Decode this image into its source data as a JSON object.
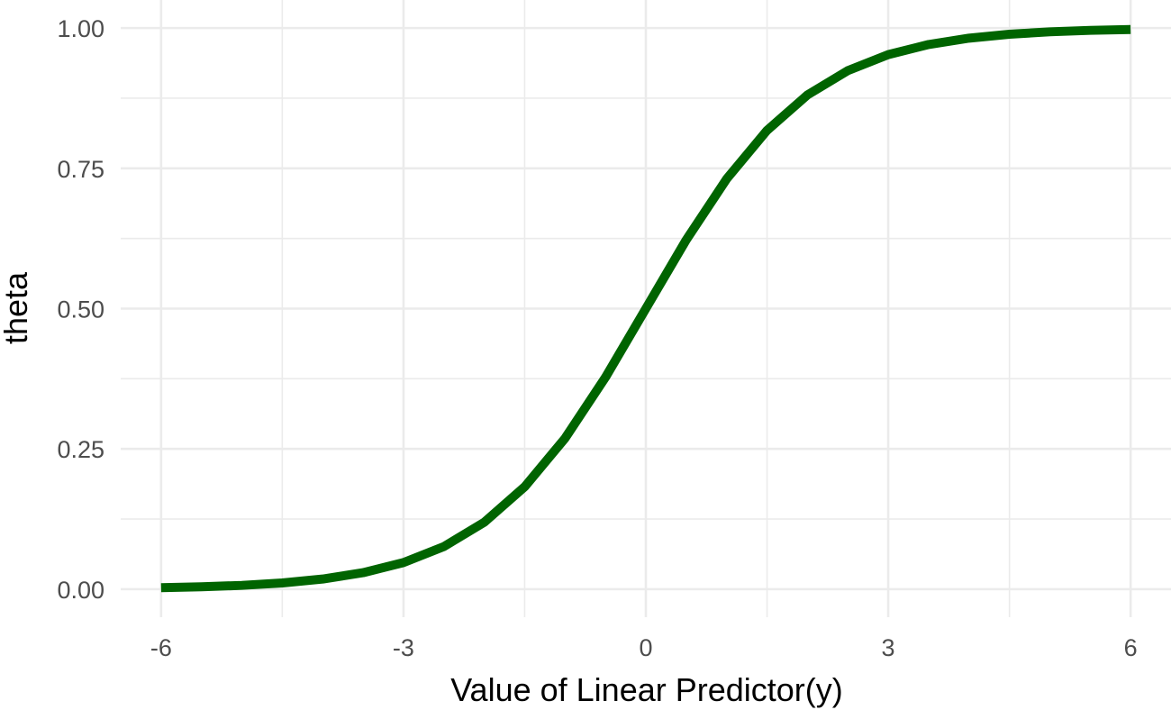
{
  "chart_data": {
    "type": "line",
    "title": "",
    "xlabel": "Value of Linear Predictor(y)",
    "ylabel": "theta",
    "xlim": [
      -6.5,
      6.5
    ],
    "ylim": [
      -0.05,
      1.05
    ],
    "x_ticks": [
      -6,
      -3,
      0,
      3,
      6
    ],
    "x_tick_labels": [
      "-6",
      "-3",
      "0",
      "3",
      "6"
    ],
    "x_minor_ticks": [
      -4.5,
      -1.5,
      1.5,
      4.5
    ],
    "y_ticks": [
      0,
      0.25,
      0.5,
      0.75,
      1
    ],
    "y_tick_labels": [
      "0.00",
      "0.25",
      "0.50",
      "0.75",
      "1.00"
    ],
    "y_minor_ticks": [
      0.125,
      0.375,
      0.625,
      0.875
    ],
    "grid": true,
    "legend": "none",
    "series": [
      {
        "color": "#006400",
        "x": [
          -6,
          -5.5,
          -5,
          -4.5,
          -4,
          -3.5,
          -3,
          -2.5,
          -2,
          -1.5,
          -1,
          -0.5,
          0,
          0.5,
          1,
          1.5,
          2,
          2.5,
          3,
          3.5,
          4,
          4.5,
          5,
          5.5,
          6
        ],
        "y": [
          0.0025,
          0.0041,
          0.0067,
          0.011,
          0.018,
          0.0293,
          0.0474,
          0.0759,
          0.1192,
          0.1824,
          0.2689,
          0.3775,
          0.5,
          0.6225,
          0.7311,
          0.8176,
          0.8808,
          0.9241,
          0.9526,
          0.9707,
          0.982,
          0.989,
          0.9933,
          0.9959,
          0.9975
        ]
      }
    ]
  }
}
